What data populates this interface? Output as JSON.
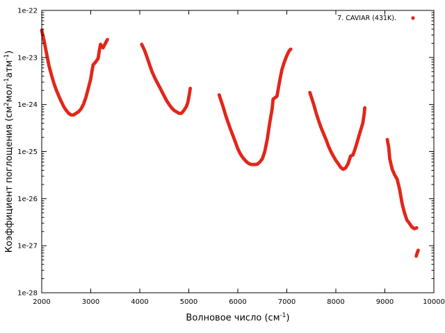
{
  "chart_data": {
    "type": "scatter",
    "xlabel": "Волновое число (см",
    "xlabel_sup": "-1",
    "xlabel_end": ")",
    "ylabel_parts": [
      "Коэффициент поглощения (см",
      "2",
      "мол",
      "-1",
      "атм",
      "-1",
      ")"
    ],
    "xlim": [
      2000,
      10000
    ],
    "ylim": [
      1e-28,
      1e-22
    ],
    "yscale": "log",
    "grid": false,
    "legend_position": "top-right",
    "x_ticks": [
      "2000",
      "3000",
      "4000",
      "5000",
      "6000",
      "7000",
      "8000",
      "9000",
      "10000"
    ],
    "y_ticks": [
      "1e-28",
      "1e-27",
      "1e-26",
      "1e-25",
      "1e-24",
      "1e-23",
      "1e-22"
    ],
    "series": [
      {
        "name": "7. CAVIAR (431K).",
        "color": "#e2261a",
        "segments": [
          [
            [
              2000,
              3.8e-23
            ],
            [
              2050,
              2.2e-23
            ],
            [
              2100,
              1.2e-23
            ],
            [
              2150,
              6.5e-24
            ],
            [
              2200,
              4.2e-24
            ],
            [
              2250,
              2.8e-24
            ],
            [
              2300,
              2e-24
            ],
            [
              2350,
              1.5e-24
            ],
            [
              2400,
              1.15e-24
            ],
            [
              2450,
              9e-25
            ],
            [
              2500,
              7.5e-25
            ],
            [
              2550,
              6.5e-25
            ],
            [
              2600,
              6e-25
            ],
            [
              2650,
              6e-25
            ],
            [
              2700,
              6.5e-25
            ],
            [
              2750,
              7e-25
            ],
            [
              2800,
              8e-25
            ],
            [
              2850,
              1e-24
            ],
            [
              2900,
              1.4e-24
            ],
            [
              2950,
              2.2e-24
            ],
            [
              3000,
              3.5e-24
            ],
            [
              3030,
              5.5e-24
            ],
            [
              3050,
              7e-24
            ],
            [
              3100,
              8e-24
            ],
            [
              3150,
              9.5e-24
            ],
            [
              3180,
              1.5e-23
            ],
            [
              3200,
              1.9e-23
            ],
            [
              3250,
              1.6e-23
            ],
            [
              3300,
              2e-23
            ],
            [
              3340,
              2.4e-23
            ]
          ],
          [
            [
              4040,
              1.9e-23
            ],
            [
              4100,
              1.4e-23
            ],
            [
              4150,
              1e-23
            ],
            [
              4200,
              7e-24
            ],
            [
              4250,
              5e-24
            ],
            [
              4300,
              3.8e-24
            ],
            [
              4350,
              3e-24
            ],
            [
              4400,
              2.4e-24
            ],
            [
              4450,
              1.9e-24
            ],
            [
              4500,
              1.5e-24
            ],
            [
              4550,
              1.2e-24
            ],
            [
              4600,
              1e-24
            ],
            [
              4650,
              8.5e-25
            ],
            [
              4700,
              7.5e-25
            ],
            [
              4750,
              7e-25
            ],
            [
              4800,
              6.5e-25
            ],
            [
              4850,
              6.5e-25
            ],
            [
              4900,
              7.5e-25
            ],
            [
              4950,
              9e-25
            ],
            [
              4980,
              1.1e-24
            ],
            [
              5010,
              1.6e-24
            ],
            [
              5030,
              2.2e-24
            ]
          ],
          [
            [
              5620,
              1.6e-24
            ],
            [
              5700,
              9e-25
            ],
            [
              5750,
              6e-25
            ],
            [
              5800,
              4.2e-25
            ],
            [
              5850,
              3e-25
            ],
            [
              5900,
              2.2e-25
            ],
            [
              5950,
              1.6e-25
            ],
            [
              6000,
              1.15e-25
            ],
            [
              6050,
              9e-26
            ],
            [
              6100,
              7.5e-26
            ],
            [
              6150,
              6.5e-26
            ],
            [
              6200,
              5.8e-26
            ],
            [
              6250,
              5.4e-26
            ],
            [
              6300,
              5.3e-26
            ],
            [
              6350,
              5.3e-26
            ],
            [
              6400,
              5.4e-26
            ],
            [
              6450,
              6e-26
            ],
            [
              6500,
              7e-26
            ],
            [
              6550,
              1e-25
            ],
            [
              6600,
              1.8e-25
            ],
            [
              6650,
              4e-25
            ],
            [
              6700,
              8e-25
            ],
            [
              6720,
              1.3e-24
            ],
            [
              6800,
              1.5e-24
            ],
            [
              6850,
              3e-24
            ],
            [
              6900,
              5.5e-24
            ],
            [
              6950,
              8e-24
            ],
            [
              7000,
              1.1e-23
            ],
            [
              7050,
              1.4e-23
            ],
            [
              7080,
              1.5e-23
            ]
          ],
          [
            [
              7470,
              1.8e-24
            ],
            [
              7550,
              1e-24
            ],
            [
              7600,
              6.5e-25
            ],
            [
              7650,
              4.5e-25
            ],
            [
              7700,
              3.2e-25
            ],
            [
              7750,
              2.4e-25
            ],
            [
              7800,
              1.8e-25
            ],
            [
              7850,
              1.3e-25
            ],
            [
              7900,
              1e-25
            ],
            [
              7950,
              8e-26
            ],
            [
              8000,
              6.5e-26
            ],
            [
              8050,
              5.5e-26
            ],
            [
              8100,
              4.6e-26
            ],
            [
              8150,
              4.2e-26
            ],
            [
              8200,
              4.5e-26
            ],
            [
              8250,
              5.5e-26
            ],
            [
              8300,
              8e-26
            ],
            [
              8350,
              8.5e-26
            ],
            [
              8400,
              1.2e-25
            ],
            [
              8450,
              1.8e-25
            ],
            [
              8500,
              2.7e-25
            ],
            [
              8550,
              4e-25
            ],
            [
              8580,
              6.5e-25
            ],
            [
              8590,
              8.5e-25
            ]
          ],
          [
            [
              9050,
              1.8e-25
            ],
            [
              9080,
              1.2e-25
            ],
            [
              9100,
              7e-26
            ],
            [
              9150,
              4.2e-26
            ],
            [
              9200,
              3.2e-26
            ],
            [
              9250,
              2.6e-26
            ],
            [
              9300,
              1.6e-26
            ],
            [
              9350,
              8e-27
            ],
            [
              9400,
              5e-27
            ],
            [
              9450,
              3.5e-27
            ],
            [
              9500,
              3e-27
            ],
            [
              9550,
              2.5e-27
            ],
            [
              9600,
              2.3e-27
            ],
            [
              9650,
              2.4e-27
            ]
          ],
          [
            [
              9640,
              6e-28
            ],
            [
              9660,
              7e-28
            ],
            [
              9680,
              8e-28
            ]
          ]
        ]
      }
    ]
  }
}
